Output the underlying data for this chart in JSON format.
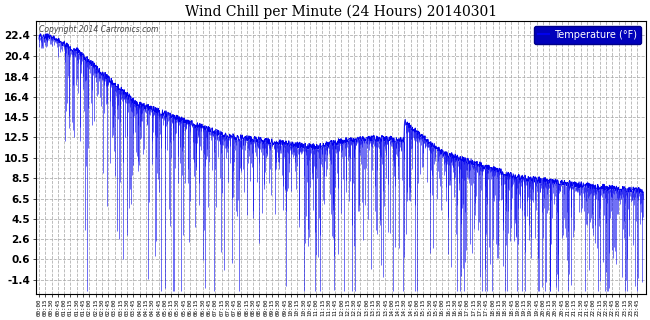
{
  "title": "Wind Chill per Minute (24 Hours) 20140301",
  "ylabel": "Temperature (°F)",
  "copyright_text": "Copyright 2014 Cartronics.com",
  "line_color": "#0000ee",
  "background_color": "#ffffff",
  "plot_bg_color": "#ffffff",
  "legend_bg_color": "#0000bb",
  "legend_text_color": "#ffffff",
  "ylim": [
    -2.8,
    23.8
  ],
  "yticks": [
    -1.4,
    0.6,
    2.6,
    4.5,
    6.5,
    8.5,
    10.5,
    12.5,
    14.5,
    16.4,
    18.4,
    20.4,
    22.4
  ],
  "x_tick_interval_minutes": 15,
  "total_minutes": 1440,
  "seed": 7
}
